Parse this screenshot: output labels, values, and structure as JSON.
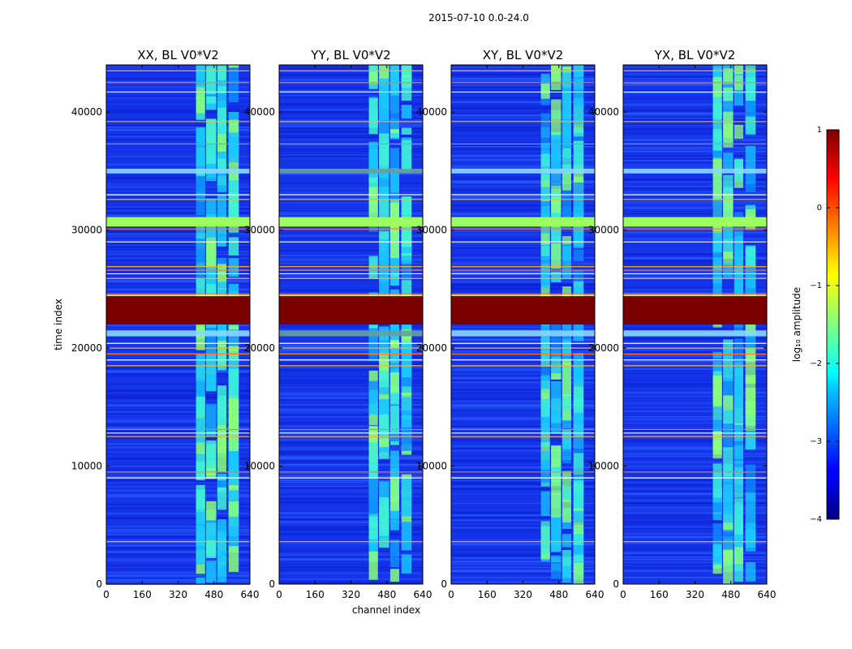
{
  "figure": {
    "suptitle": "2015-07-10 0.0-24.0",
    "xlabel": "channel index",
    "ylabel": "time index"
  },
  "chart_data": {
    "type": "heatmap",
    "x_range": [
      0,
      640
    ],
    "y_range": [
      0,
      44000
    ],
    "x_ticks": [
      0,
      160,
      320,
      480,
      640
    ],
    "y_ticks": [
      0,
      10000,
      20000,
      30000,
      40000
    ],
    "panels": [
      {
        "id": "xx",
        "title": "XX, BL V0*V2"
      },
      {
        "id": "yy",
        "title": "YY, BL V0*V2"
      },
      {
        "id": "xy",
        "title": "XY, BL V0*V2"
      },
      {
        "id": "yx",
        "title": "YX, BL V0*V2"
      }
    ],
    "rfi_bands_channels": [
      [
        400,
        440
      ],
      [
        445,
        490
      ],
      [
        495,
        535
      ],
      [
        545,
        590
      ]
    ],
    "saturated_time_range": [
      22000,
      24400
    ],
    "bright_time_range": [
      30300,
      31100
    ],
    "elevated_time_ranges": [
      [
        21000,
        21500
      ],
      [
        34800,
        35200
      ]
    ],
    "flag_rows_time": [
      3600,
      9000,
      9500,
      12500,
      12800,
      13100,
      18500,
      19000,
      19500,
      20000,
      20400,
      24600,
      25900,
      26300,
      26600,
      26900,
      29000,
      30100,
      32600,
      33000,
      37300,
      39200,
      41700,
      42500,
      43500
    ],
    "colorbar": {
      "label": "log₁₀ amplitude",
      "range": [
        -4,
        1
      ],
      "ticks": [
        "1",
        "0",
        "−1",
        "−2",
        "−3",
        "−4"
      ],
      "colormap": "jet"
    }
  }
}
